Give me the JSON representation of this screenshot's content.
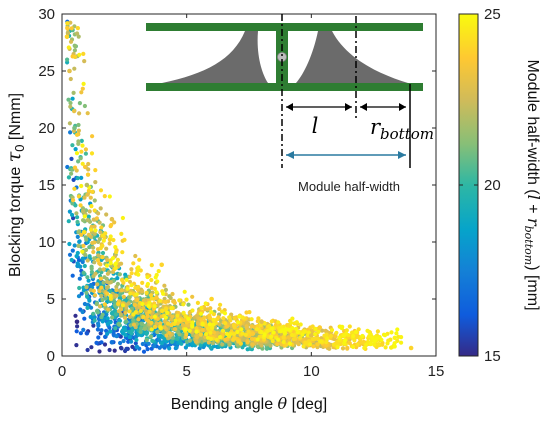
{
  "chart_data": {
    "type": "scatter",
    "xlabel": "Bending angle θ [deg]",
    "xlabel_parts": {
      "text": "Bending angle ",
      "symbol": "θ",
      "unit": " [deg]"
    },
    "ylabel": "Blocking torque τ0 [Nmm]",
    "ylabel_parts": {
      "text": "Blocking torque ",
      "symbol": "τ",
      "sub": "0",
      "unit": " [Nmm]"
    },
    "xlim": [
      0,
      15
    ],
    "ylim": [
      0,
      30
    ],
    "x_ticks": [
      0,
      5,
      10,
      15
    ],
    "y_ticks": [
      0,
      5,
      10,
      15,
      20,
      25,
      30
    ],
    "grid": false,
    "colormap": "parula",
    "colorbar": {
      "label": "Module half-width (l + r_bottom) [mm]",
      "label_parts": {
        "text": "Module half-width ",
        "expr_l": "l",
        "expr_plus": " + ",
        "expr_r": "r",
        "expr_sub": "bottom",
        "unit": "[mm]"
      },
      "range": [
        15,
        25
      ],
      "ticks": [
        15,
        20,
        25
      ]
    },
    "series_summary": "Dense cloud of design points; blocking torque decreases roughly hyperbolically with bending angle. Wider modules (yellow) reach larger angles.",
    "sample_points": [
      {
        "x": 0.2,
        "y": 28.0,
        "c": 24
      },
      {
        "x": 0.3,
        "y": 25.0,
        "c": 23
      },
      {
        "x": 0.5,
        "y": 20.0,
        "c": 21
      },
      {
        "x": 1.0,
        "y": 15.0,
        "c": 22
      },
      {
        "x": 2.0,
        "y": 12.0,
        "c": 23
      },
      {
        "x": 4.0,
        "y": 8.0,
        "c": 24
      },
      {
        "x": 6.0,
        "y": 5.0,
        "c": 24
      },
      {
        "x": 8.0,
        "y": 3.0,
        "c": 23
      },
      {
        "x": 10.0,
        "y": 1.8,
        "c": 23
      },
      {
        "x": 12.0,
        "y": 1.2,
        "c": 24
      },
      {
        "x": 14.0,
        "y": 0.7,
        "c": 24
      },
      {
        "x": 0.6,
        "y": 3.0,
        "c": 15
      },
      {
        "x": 1.0,
        "y": 2.0,
        "c": 16
      },
      {
        "x": 2.0,
        "y": 1.2,
        "c": 17
      },
      {
        "x": 3.0,
        "y": 0.8,
        "c": 18
      }
    ]
  },
  "inset": {
    "symbol_l": "l",
    "symbol_r": "r",
    "symbol_r_sub": "bottom",
    "module_half_width_label": "Module half-width"
  },
  "colors": {
    "beam": "#2e7d32",
    "flexure": "#6b6b6b",
    "arrow": "#2a7aa0"
  }
}
